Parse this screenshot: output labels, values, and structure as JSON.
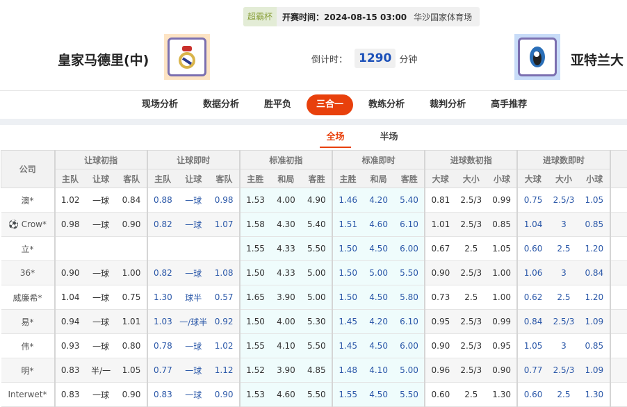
{
  "match": {
    "cup": "超霸杯",
    "time": "开赛时间：2024-08-15 03:00",
    "venue": "华沙国家体育场",
    "home": "皇家马德里(中)",
    "away": "亚特兰大",
    "countdown_label": "倒计时：",
    "countdown_value": "1290",
    "countdown_unit": "分钟"
  },
  "nav": [
    "现场分析",
    "数据分析",
    "胜平负",
    "三合一",
    "教练分析",
    "裁判分析",
    "高手推荐"
  ],
  "nav_active": 3,
  "tabs": [
    "全场",
    "半场"
  ],
  "tab_active": 0,
  "colors": {
    "accent": "#e8400c",
    "live_value": "#2a57a8"
  },
  "table": {
    "company_header": "公司",
    "groups": [
      "让球初指",
      "让球即时",
      "标准初指",
      "标准即时",
      "进球数初指",
      "进球数即时"
    ],
    "subheaders": [
      [
        "主队",
        "让球",
        "客队"
      ],
      [
        "主队",
        "让球",
        "客队"
      ],
      [
        "主胜",
        "和局",
        "客胜"
      ],
      [
        "主胜",
        "和局",
        "客胜"
      ],
      [
        "大球",
        "大小",
        "小球"
      ],
      [
        "大球",
        "大小",
        "小球"
      ]
    ],
    "rows": [
      [
        "澳*",
        "1.02",
        "一球",
        "0.84",
        "0.88",
        "一球",
        "0.98",
        "1.53",
        "4.00",
        "4.90",
        "1.46",
        "4.20",
        "5.40",
        "0.81",
        "2.5/3",
        "0.99",
        "0.75",
        "2.5/3",
        "1.05"
      ],
      [
        "Crow*",
        "0.98",
        "一球",
        "0.90",
        "0.82",
        "一球",
        "1.07",
        "1.58",
        "4.30",
        "5.40",
        "1.51",
        "4.60",
        "6.10",
        "1.01",
        "2.5/3",
        "0.85",
        "1.04",
        "3",
        "0.85"
      ],
      [
        "立*",
        "",
        "",
        "",
        "",
        "",
        "",
        "1.55",
        "4.33",
        "5.50",
        "1.50",
        "4.50",
        "6.00",
        "0.67",
        "2.5",
        "1.05",
        "0.60",
        "2.5",
        "1.20"
      ],
      [
        "36*",
        "0.90",
        "一球",
        "1.00",
        "0.82",
        "一球",
        "1.08",
        "1.50",
        "4.33",
        "5.00",
        "1.50",
        "5.00",
        "5.50",
        "0.90",
        "2.5/3",
        "1.00",
        "1.06",
        "3",
        "0.84"
      ],
      [
        "威廉希*",
        "1.04",
        "一球",
        "0.75",
        "1.30",
        "球半",
        "0.57",
        "1.65",
        "3.90",
        "5.00",
        "1.50",
        "4.50",
        "5.80",
        "0.73",
        "2.5",
        "1.00",
        "0.62",
        "2.5",
        "1.20"
      ],
      [
        "易*",
        "0.94",
        "一球",
        "1.01",
        "1.03",
        "一/球半",
        "0.92",
        "1.50",
        "4.00",
        "5.30",
        "1.45",
        "4.20",
        "6.10",
        "0.95",
        "2.5/3",
        "0.99",
        "0.84",
        "2.5/3",
        "1.09"
      ],
      [
        "伟*",
        "0.93",
        "一球",
        "0.80",
        "0.78",
        "一球",
        "1.02",
        "1.55",
        "4.10",
        "5.50",
        "1.45",
        "4.50",
        "6.00",
        "0.90",
        "2.5/3",
        "0.95",
        "1.05",
        "3",
        "0.85"
      ],
      [
        "明*",
        "0.83",
        "半/一",
        "1.05",
        "0.77",
        "一球",
        "1.12",
        "1.52",
        "3.90",
        "4.85",
        "1.48",
        "4.10",
        "5.00",
        "0.96",
        "2.5/3",
        "0.90",
        "0.77",
        "2.5/3",
        "1.09"
      ],
      [
        "Interwet*",
        "0.83",
        "一球",
        "0.90",
        "0.83",
        "一球",
        "0.90",
        "1.53",
        "4.60",
        "5.50",
        "1.55",
        "4.50",
        "5.50",
        "0.60",
        "2.5",
        "1.30",
        "0.60",
        "2.5",
        "1.30"
      ]
    ]
  }
}
